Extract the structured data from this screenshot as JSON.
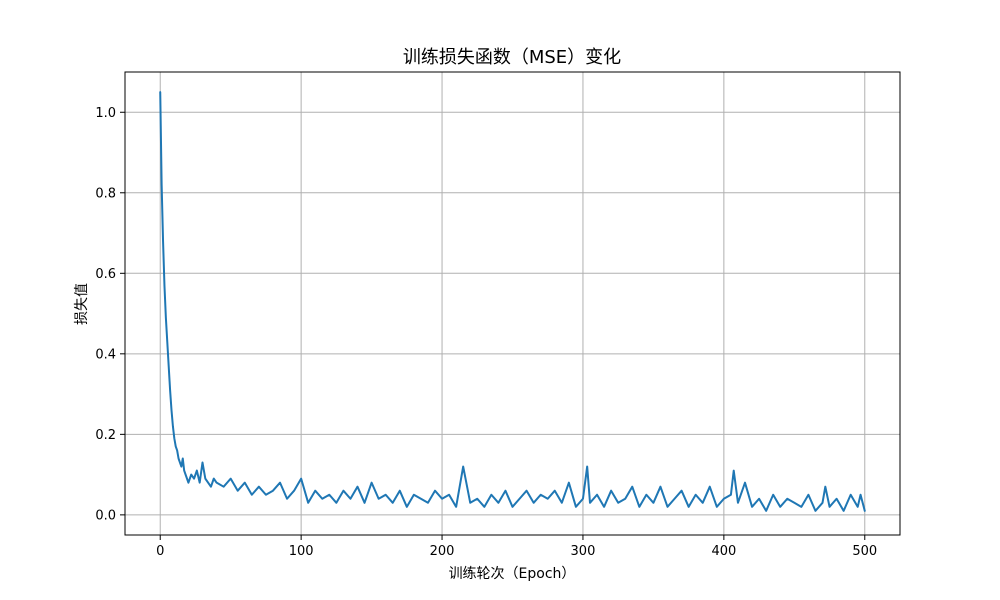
{
  "chart_data": {
    "type": "line",
    "title": "训练损失函数（MSE）变化",
    "xlabel": "训练轮次（Epoch）",
    "ylabel": "损失值",
    "xlim": [
      -25,
      525
    ],
    "ylim": [
      -0.05,
      1.1
    ],
    "xticks": [
      0,
      100,
      200,
      300,
      400,
      500
    ],
    "yticks": [
      0.0,
      0.2,
      0.4,
      0.6,
      0.8,
      1.0
    ],
    "xtick_labels": [
      "0",
      "100",
      "200",
      "300",
      "400",
      "500"
    ],
    "ytick_labels": [
      "0.0",
      "0.2",
      "0.4",
      "0.6",
      "0.8",
      "1.0"
    ],
    "grid": true,
    "line_color": "#1f77b4",
    "grid_color": "#b0b0b0",
    "series": [
      {
        "x": [
          0,
          1,
          2,
          3,
          4,
          5,
          6,
          7,
          8,
          9,
          10,
          11,
          12,
          13,
          14,
          15,
          16,
          17,
          18,
          19,
          20,
          22,
          24,
          26,
          28,
          30,
          32,
          34,
          36,
          38,
          40,
          45,
          50,
          55,
          60,
          65,
          70,
          75,
          80,
          85,
          90,
          95,
          100,
          105,
          110,
          115,
          120,
          125,
          130,
          135,
          140,
          145,
          150,
          155,
          160,
          165,
          170,
          175,
          180,
          185,
          190,
          195,
          200,
          205,
          210,
          215,
          220,
          225,
          230,
          235,
          240,
          245,
          250,
          255,
          260,
          265,
          270,
          275,
          280,
          285,
          290,
          295,
          300,
          303,
          305,
          310,
          315,
          320,
          325,
          330,
          335,
          340,
          345,
          350,
          355,
          360,
          365,
          370,
          375,
          380,
          385,
          390,
          395,
          400,
          405,
          407,
          410,
          415,
          420,
          425,
          430,
          435,
          440,
          445,
          450,
          455,
          460,
          465,
          470,
          472,
          475,
          480,
          485,
          490,
          495,
          497,
          500
        ],
        "values": [
          1.05,
          0.82,
          0.68,
          0.57,
          0.49,
          0.43,
          0.37,
          0.31,
          0.26,
          0.22,
          0.19,
          0.17,
          0.16,
          0.14,
          0.13,
          0.12,
          0.14,
          0.11,
          0.1,
          0.09,
          0.08,
          0.1,
          0.09,
          0.11,
          0.08,
          0.13,
          0.09,
          0.08,
          0.07,
          0.09,
          0.08,
          0.07,
          0.09,
          0.06,
          0.08,
          0.05,
          0.07,
          0.05,
          0.06,
          0.08,
          0.04,
          0.06,
          0.09,
          0.03,
          0.06,
          0.04,
          0.05,
          0.03,
          0.06,
          0.04,
          0.07,
          0.03,
          0.08,
          0.04,
          0.05,
          0.03,
          0.06,
          0.02,
          0.05,
          0.04,
          0.03,
          0.06,
          0.04,
          0.05,
          0.02,
          0.12,
          0.03,
          0.04,
          0.02,
          0.05,
          0.03,
          0.06,
          0.02,
          0.04,
          0.06,
          0.03,
          0.05,
          0.04,
          0.06,
          0.03,
          0.08,
          0.02,
          0.04,
          0.12,
          0.03,
          0.05,
          0.02,
          0.06,
          0.03,
          0.04,
          0.07,
          0.02,
          0.05,
          0.03,
          0.07,
          0.02,
          0.04,
          0.06,
          0.02,
          0.05,
          0.03,
          0.07,
          0.02,
          0.04,
          0.05,
          0.11,
          0.03,
          0.08,
          0.02,
          0.04,
          0.01,
          0.05,
          0.02,
          0.04,
          0.03,
          0.02,
          0.05,
          0.01,
          0.03,
          0.07,
          0.02,
          0.04,
          0.01,
          0.05,
          0.02,
          0.05,
          0.01
        ]
      }
    ]
  }
}
